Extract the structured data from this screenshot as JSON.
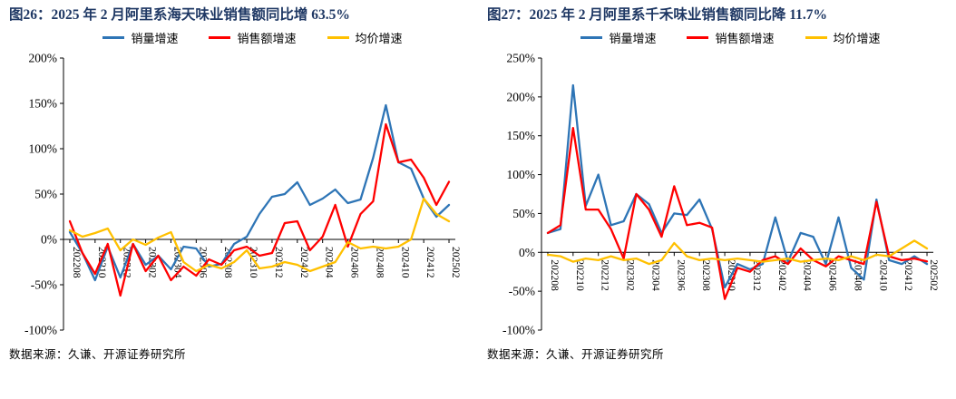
{
  "chart_data": [
    {
      "type": "line",
      "title": "图26：2025 年 2 月阿里系海天味业销售额同比增 63.5%",
      "source": "数据来源：久谦、开源证券研究所",
      "legend_position": "top",
      "grid": false,
      "ylim": [
        -100,
        200
      ],
      "y_step": 50,
      "y_tick_suffix": "%",
      "x_label_every": 2,
      "x": [
        "202208",
        "202209",
        "202210",
        "202211",
        "202212",
        "202301",
        "202302",
        "202303",
        "202304",
        "202305",
        "202306",
        "202307",
        "202308",
        "202309",
        "202310",
        "202311",
        "202312",
        "202401",
        "202402",
        "202403",
        "202404",
        "202405",
        "202406",
        "202407",
        "202408",
        "202409",
        "202410",
        "202411",
        "202412",
        "202501",
        "202502"
      ],
      "x_tick_labels": [
        "202208",
        "202210",
        "202212",
        "202302",
        "202304",
        "202306",
        "202308",
        "202310",
        "202312",
        "202402",
        "202404",
        "202406",
        "202408",
        "202410",
        "202412",
        "202502"
      ],
      "series": [
        {
          "name": "销量增速",
          "color": "#2E75B6",
          "values": [
            8,
            -15,
            -45,
            -8,
            -42,
            -5,
            -28,
            -18,
            -33,
            -8,
            -10,
            -30,
            -27,
            -5,
            3,
            28,
            47,
            50,
            63,
            38,
            45,
            55,
            40,
            44,
            90,
            148,
            85,
            78,
            45,
            25,
            38
          ]
        },
        {
          "name": "销售额增速",
          "color": "#FF0000",
          "values": [
            20,
            -15,
            -38,
            -5,
            -62,
            -5,
            -35,
            -18,
            -45,
            -30,
            -40,
            -22,
            -28,
            -12,
            -8,
            -18,
            -15,
            18,
            20,
            -12,
            3,
            38,
            -8,
            28,
            42,
            127,
            85,
            88,
            68,
            38,
            63.5
          ]
        },
        {
          "name": "均价增速",
          "color": "#FFC000",
          "values": [
            10,
            3,
            7,
            12,
            -12,
            0,
            -6,
            2,
            8,
            -25,
            -35,
            -28,
            -32,
            -25,
            -12,
            -32,
            -30,
            -25,
            -28,
            -35,
            -30,
            -25,
            -3,
            -10,
            -8,
            -10,
            -8,
            0,
            45,
            28,
            20
          ]
        }
      ]
    },
    {
      "type": "line",
      "title": "图27：2025 年 2 月阿里系千禾味业销售额同比降 11.7%",
      "source": "数据来源：久谦、开源证券研究所",
      "legend_position": "top",
      "grid": false,
      "ylim": [
        -100,
        250
      ],
      "y_step": 50,
      "y_tick_suffix": "%",
      "x_label_every": 2,
      "x": [
        "202208",
        "202209",
        "202210",
        "202211",
        "202212",
        "202301",
        "202302",
        "202303",
        "202304",
        "202305",
        "202306",
        "202307",
        "202308",
        "202309",
        "202310",
        "202311",
        "202312",
        "202401",
        "202402",
        "202403",
        "202404",
        "202405",
        "202406",
        "202407",
        "202408",
        "202409",
        "202410",
        "202411",
        "202412",
        "202501",
        "202502"
      ],
      "x_tick_labels": [
        "202208",
        "202210",
        "202212",
        "202302",
        "202304",
        "202306",
        "202308",
        "202310",
        "202312",
        "202402",
        "202404",
        "202406",
        "202408",
        "202410",
        "202412",
        "202502"
      ],
      "series": [
        {
          "name": "销量增速",
          "color": "#2E75B6",
          "values": [
            25,
            30,
            215,
            60,
            100,
            35,
            40,
            75,
            62,
            25,
            50,
            48,
            68,
            30,
            -45,
            -15,
            -22,
            -15,
            45,
            -12,
            25,
            20,
            -15,
            45,
            -20,
            -35,
            68,
            -10,
            -15,
            -5,
            -15
          ]
        },
        {
          "name": "销售额增速",
          "color": "#FF0000",
          "values": [
            25,
            35,
            160,
            55,
            55,
            30,
            -8,
            75,
            55,
            20,
            85,
            35,
            38,
            32,
            -60,
            -20,
            -25,
            -10,
            -5,
            -15,
            5,
            -10,
            -18,
            -5,
            -10,
            -15,
            65,
            -5,
            -10,
            -8,
            -11.7
          ]
        },
        {
          "name": "均价增速",
          "color": "#FFC000",
          "values": [
            -3,
            -5,
            -12,
            -8,
            -10,
            -5,
            -10,
            -8,
            -15,
            -10,
            12,
            -5,
            -10,
            -8,
            -10,
            -8,
            -10,
            -12,
            -10,
            -8,
            -12,
            -10,
            -8,
            -10,
            -5,
            -10,
            -3,
            -5,
            5,
            15,
            5
          ]
        }
      ]
    }
  ]
}
